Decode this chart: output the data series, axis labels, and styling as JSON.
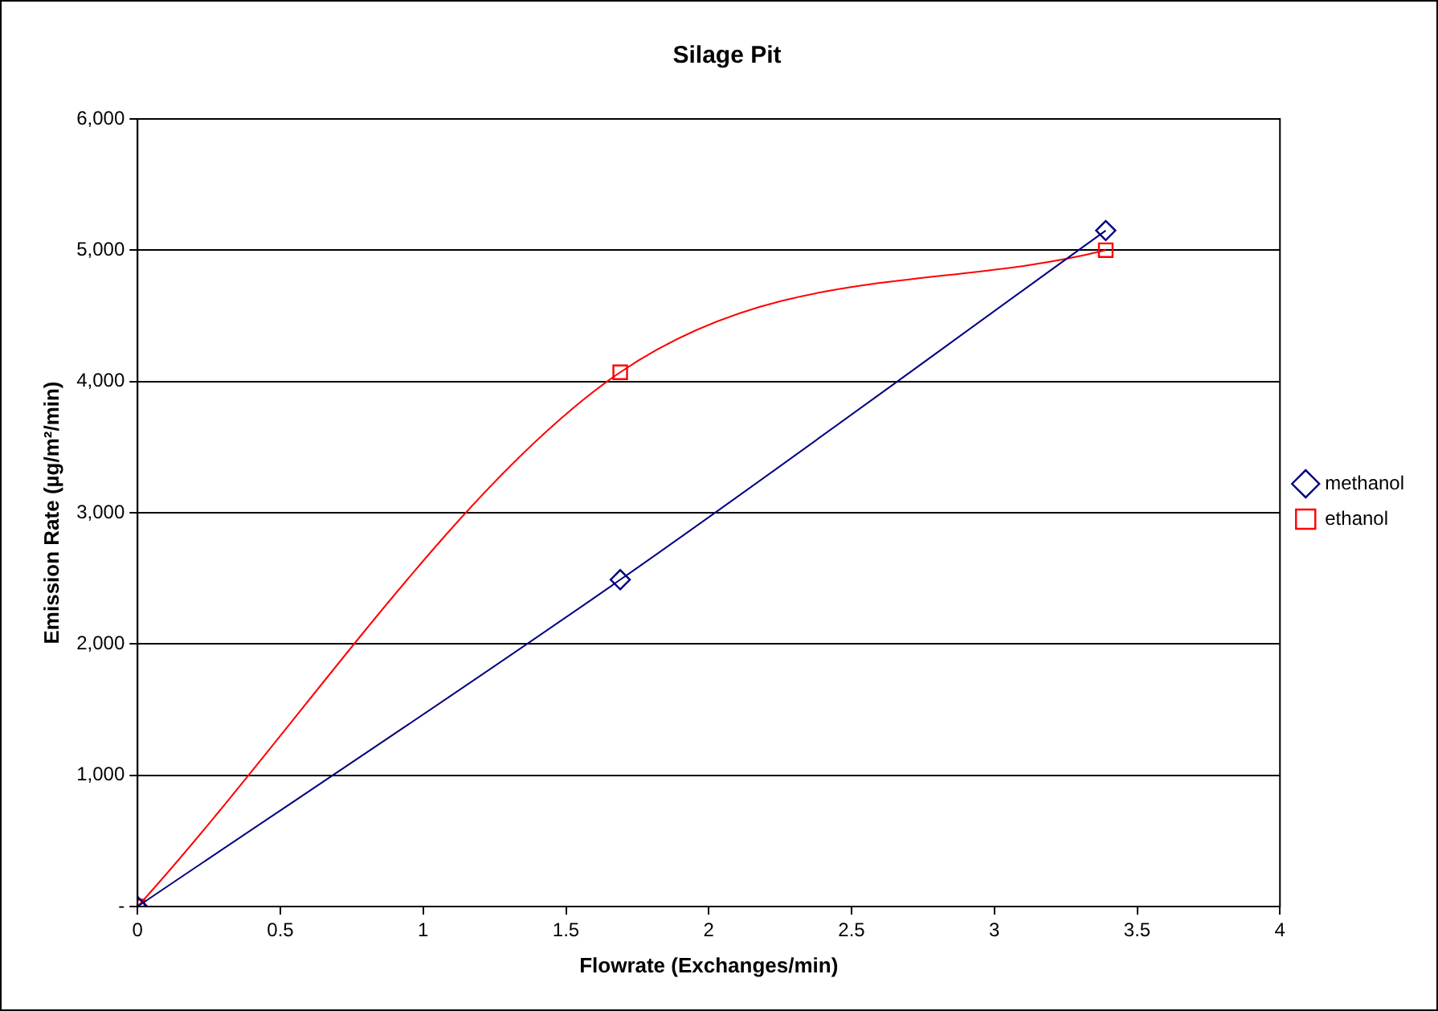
{
  "chart_data": {
    "type": "line",
    "title": "Silage Pit",
    "xlabel": "Flowrate (Exchanges/min)",
    "ylabel": "Emission Rate (µg/m²/min)",
    "xlim": [
      0,
      4
    ],
    "xticks": [
      0,
      0.5,
      1,
      1.5,
      2,
      2.5,
      3,
      3.5,
      4
    ],
    "ylim": [
      0,
      6000
    ],
    "yticks": [
      {
        "value": 0,
        "label": "-"
      },
      {
        "value": 1000,
        "label": "1,000"
      },
      {
        "value": 2000,
        "label": "2,000"
      },
      {
        "value": 3000,
        "label": "3,000"
      },
      {
        "value": 4000,
        "label": "4,000"
      },
      {
        "value": 5000,
        "label": "5,000"
      },
      {
        "value": 6000,
        "label": "6,000"
      }
    ],
    "grid": "y",
    "legend": "right",
    "line_style": "solid",
    "series": [
      {
        "name": "methanol",
        "color": "#000080",
        "marker": "diamond",
        "x": [
          0,
          1.69,
          3.39
        ],
        "values": [
          0,
          2490,
          5150
        ]
      },
      {
        "name": "ethanol",
        "color": "#ff0000",
        "marker": "square",
        "x": [
          0,
          1.69,
          3.39
        ],
        "values": [
          0,
          4070,
          5000
        ]
      }
    ]
  }
}
